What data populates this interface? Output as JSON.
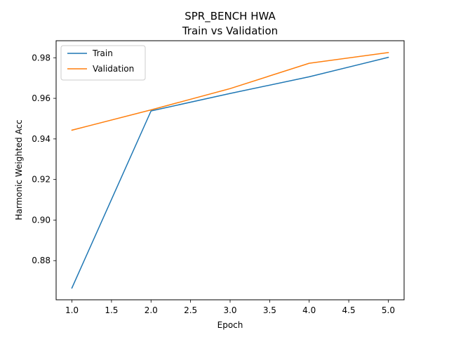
{
  "chart_data": {
    "type": "line",
    "title": "SPR_BENCH HWA",
    "subtitle": "Train vs Validation",
    "xlabel": "Epoch",
    "ylabel": "Harmonic Weighted Acc",
    "x": [
      1,
      2,
      3,
      4,
      5
    ],
    "series": [
      {
        "name": "Train",
        "values": [
          0.8665,
          0.9538,
          0.9624,
          0.9706,
          0.9802
        ],
        "color": "#1f77b4"
      },
      {
        "name": "Validation",
        "values": [
          0.9443,
          0.9543,
          0.9648,
          0.9773,
          0.9826
        ],
        "color": "#ff7f0e"
      }
    ],
    "xlim": [
      0.8,
      5.2
    ],
    "ylim": [
      0.8607,
      0.9884
    ],
    "xticks": [
      1.0,
      1.5,
      2.0,
      2.5,
      3.0,
      3.5,
      4.0,
      4.5,
      5.0
    ],
    "xtick_labels": [
      "1.0",
      "1.5",
      "2.0",
      "2.5",
      "3.0",
      "3.5",
      "4.0",
      "4.5",
      "5.0"
    ],
    "yticks": [
      0.88,
      0.9,
      0.92,
      0.94,
      0.96,
      0.98
    ],
    "ytick_labels": [
      "0.88",
      "0.90",
      "0.92",
      "0.94",
      "0.96",
      "0.98"
    ],
    "grid": false,
    "legend": "top-left"
  }
}
